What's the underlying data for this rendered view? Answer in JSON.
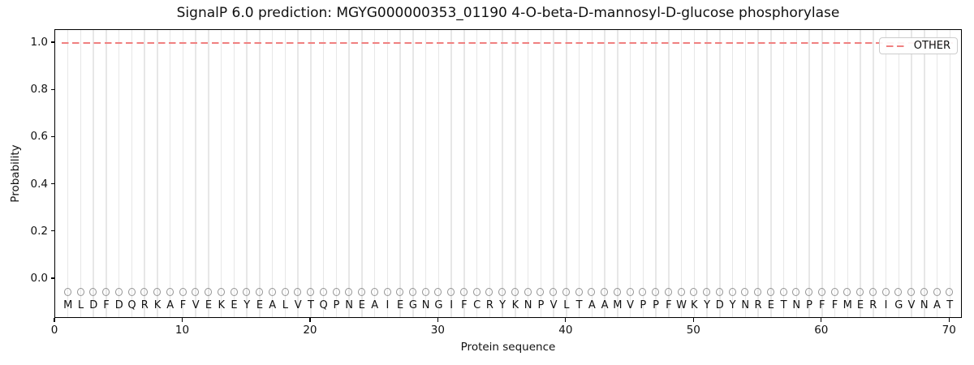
{
  "chart_data": {
    "type": "line",
    "title": "SignalP 6.0 prediction: MGYG000000353_01190 4-O-beta-D-mannosyl-D-glucose phosphorylase",
    "xlabel": "Protein sequence",
    "ylabel": "Probability",
    "xlim": [
      0,
      71
    ],
    "ylim": [
      -0.17,
      1.05
    ],
    "x_ticks": [
      0,
      10,
      20,
      30,
      40,
      50,
      60,
      70
    ],
    "x_tick_labels": [
      "0",
      "10",
      "20",
      "30",
      "40",
      "50",
      "60",
      "70"
    ],
    "y_ticks": [
      0.0,
      0.2,
      0.4,
      0.6,
      0.8,
      1.0
    ],
    "y_tick_labels": [
      "0.0",
      "0.2",
      "0.4",
      "0.6",
      "0.8",
      "1.0"
    ],
    "grid": "vertical gridline at every residue position, no horizontal gridlines",
    "legend": {
      "position": "upper right",
      "entries": [
        "OTHER"
      ]
    },
    "series": [
      {
        "name": "OTHER",
        "style": "dashed",
        "color": "#f08080",
        "x_start": 1,
        "x_end": 70,
        "y_constant": 1.0,
        "note": "constant probability 1.0 for all 70 residues"
      }
    ],
    "sequence": {
      "residues": "MLDFDQRKAFVEKEYEALVTQPNEAIEGNGIFCRYKNPVLTAAMVPPFWKYDYNRETNPFFMERIGVNAT",
      "length": 70,
      "marker": "open-circle",
      "marker_y": -0.058,
      "letters_y": -0.112
    }
  },
  "colors": {
    "other_line": "#f08080",
    "marker_edge": "#949494",
    "residue_letter": "#111111",
    "gridline": "#e7e7e7",
    "axis": "#000000",
    "legend_border": "#cccccc",
    "background": "#ffffff"
  }
}
